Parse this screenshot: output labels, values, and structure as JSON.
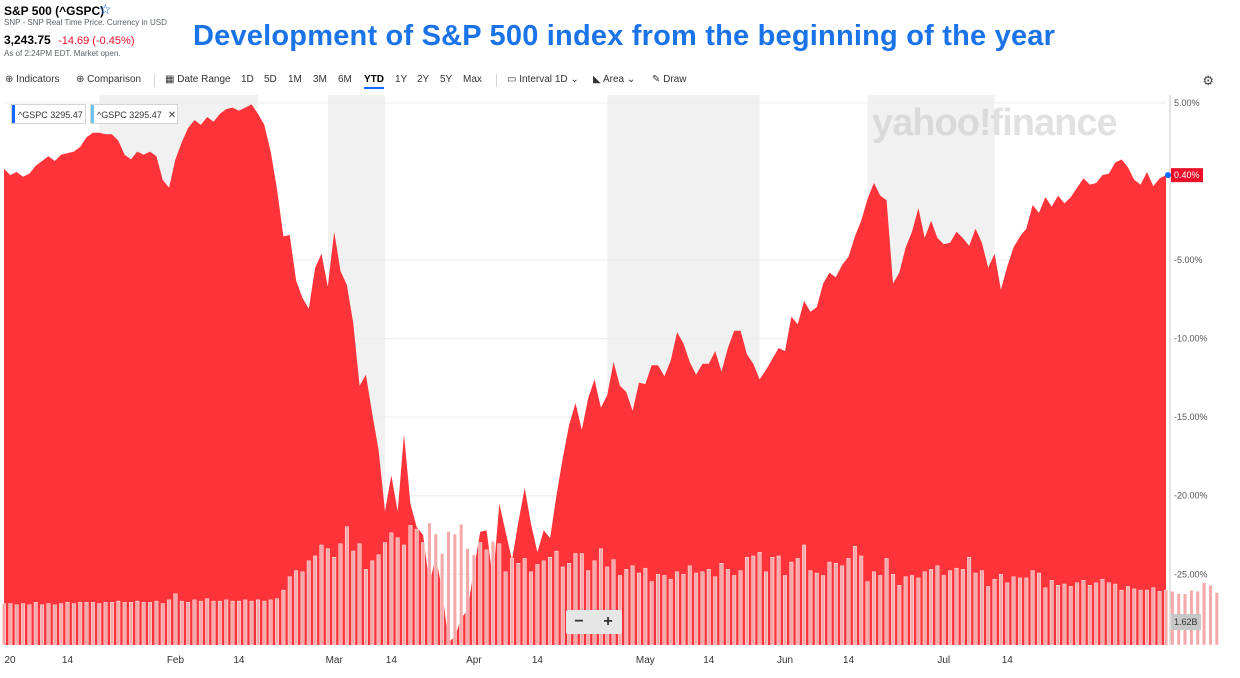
{
  "header": {
    "ticker_name": "S&P 500 (^GSPC)",
    "source_line": "SNP - SNP Real Time Price. Currency in USD",
    "price": "3,243.75",
    "change": "-14.69 (-0.45%)",
    "time_line": "As of 2:24PM EDT. Market open."
  },
  "overlay_title": "Development of S&P 500 index from the beginning of the year",
  "toolbar": {
    "indicators": "Indicators",
    "comparison": "Comparison",
    "date_range": "Date Range",
    "ranges": [
      "1D",
      "5D",
      "1M",
      "3M",
      "6M",
      "YTD",
      "1Y",
      "2Y",
      "5Y",
      "Max"
    ],
    "active_range": "YTD",
    "interval_label": "Interval",
    "interval_value": "1D",
    "chart_type": "Area",
    "draw": "Draw"
  },
  "legend_chips": [
    "^GSPC 3295.47",
    "^GSPC 3295.47"
  ],
  "watermark": "yahoo!finance",
  "current_value_tag": "0.40%",
  "volume_tag": "1.62B",
  "colors": {
    "area": "#ff333a",
    "volume_bar": "#f6a9ab",
    "shade": "#f1f1f1",
    "title": "#1a73e8",
    "accent": "#0f69ff",
    "negative": "#eb0f29"
  },
  "chart_data": {
    "type": "area",
    "ylabel": "",
    "y_unit": "%",
    "ylim": [
      -29.5,
      5.5
    ],
    "yticks": [
      5,
      -5,
      -10,
      -15,
      -20,
      -25
    ],
    "ytick_labels": [
      "5.00%",
      "-5.00%",
      "-10.00%",
      "-15.00%",
      "-20.00%",
      "-25.00%"
    ],
    "xtick_labels": [
      "20",
      "14",
      "Feb",
      "14",
      "Mar",
      "14",
      "Apr",
      "14",
      "May",
      "14",
      "Jun",
      "14",
      "Jul",
      "14"
    ],
    "xtick_index": [
      0,
      10,
      27,
      37,
      52,
      61,
      74,
      84,
      101,
      111,
      123,
      133,
      148,
      158
    ],
    "shaded_months": [
      [
        15,
        40
      ],
      [
        51,
        60
      ],
      [
        95,
        119
      ],
      [
        136,
        156
      ]
    ],
    "series": [
      {
        "values": [
          0.8,
          0.4,
          0.6,
          0.3,
          0.5,
          1.0,
          1.3,
          1.6,
          1.3,
          1.7,
          1.8,
          1.9,
          2.2,
          2.8,
          3.1,
          3.1,
          3.0,
          3.0,
          2.6,
          1.7,
          1.4,
          1.9,
          1.7,
          1.9,
          1.6,
          0.1,
          -0.4,
          1.4,
          2.5,
          3.4,
          3.9,
          3.6,
          4.1,
          3.8,
          4.3,
          4.6,
          4.7,
          4.5,
          4.7,
          4.9,
          4.3,
          3.6,
          1.9,
          -0.5,
          -3.5,
          -3.4,
          -6.3,
          -7.4,
          -8.1,
          -5.5,
          -4.6,
          -6.7,
          -3.2,
          -5.7,
          -6.6,
          -9.0,
          -13.0,
          -12.3,
          -14.8,
          -17.1,
          -21.0,
          -18.7,
          -21.0,
          -16.1,
          -20.5,
          -22.0,
          -22.5,
          -25.6,
          -23.9,
          -26.0,
          -29.3,
          -29.0,
          -27.8,
          -27.3,
          -24.7,
          -22.3,
          -22.2,
          -25.4,
          -20.5,
          -22.3,
          -24.1,
          -21.7,
          -19.5,
          -21.8,
          -23.6,
          -22.2,
          -22.7,
          -20.0,
          -17.6,
          -15.5,
          -14.1,
          -15.8,
          -13.8,
          -12.6,
          -14.4,
          -13.6,
          -11.5,
          -13.0,
          -13.4,
          -14.6,
          -12.8,
          -12.9,
          -11.7,
          -11.7,
          -12.4,
          -11.4,
          -9.6,
          -10.3,
          -11.5,
          -12.3,
          -11.6,
          -11.6,
          -10.8,
          -12.1,
          -10.6,
          -9.5,
          -9.5,
          -11.0,
          -11.6,
          -12.6,
          -12.0,
          -11.3,
          -10.6,
          -10.8,
          -8.6,
          -9.1,
          -7.6,
          -8.3,
          -8.0,
          -6.5,
          -5.8,
          -6.1,
          -5.3,
          -4.8,
          -3.5,
          -2.5,
          -1.1,
          -0.1,
          -0.9,
          -1.2,
          -6.5,
          -5.8,
          -4.2,
          -3.2,
          -1.7,
          -3.6,
          -2.5,
          -3.6,
          -4.0,
          -3.9,
          -3.2,
          -3.6,
          -4.1,
          -3.0,
          -3.9,
          -5.5,
          -4.6,
          -6.9,
          -5.4,
          -4.2,
          -3.5,
          -3.0,
          -1.5,
          -2.0,
          -1.0,
          -1.6,
          -0.9,
          -1.4,
          -1.0,
          -0.4,
          0.2,
          -0.2,
          -0.1,
          0.4,
          0.5,
          1.2,
          1.4,
          0.9,
          0.1,
          -0.2,
          0.6,
          -0.3,
          0.2,
          0.4
        ]
      }
    ],
    "volume_bars": [
      0.34,
      0.34,
      0.33,
      0.34,
      0.33,
      0.35,
      0.33,
      0.34,
      0.33,
      0.34,
      0.35,
      0.34,
      0.35,
      0.35,
      0.35,
      0.34,
      0.35,
      0.35,
      0.36,
      0.35,
      0.35,
      0.36,
      0.35,
      0.35,
      0.36,
      0.34,
      0.37,
      0.42,
      0.36,
      0.35,
      0.37,
      0.36,
      0.38,
      0.36,
      0.36,
      0.37,
      0.36,
      0.36,
      0.37,
      0.36,
      0.37,
      0.36,
      0.37,
      0.38,
      0.45,
      0.56,
      0.61,
      0.6,
      0.69,
      0.73,
      0.82,
      0.79,
      0.72,
      0.83,
      0.97,
      0.77,
      0.83,
      0.62,
      0.69,
      0.74,
      0.84,
      0.92,
      0.88,
      0.82,
      0.98,
      0.95,
      0.84,
      1.0,
      0.91,
      0.75,
      0.93,
      0.91,
      0.99,
      0.79,
      0.74,
      0.84,
      0.78,
      0.85,
      0.83,
      0.6,
      0.71,
      0.67,
      0.71,
      0.6,
      0.66,
      0.69,
      0.72,
      0.77,
      0.64,
      0.67,
      0.75,
      0.75,
      0.61,
      0.69,
      0.79,
      0.64,
      0.7,
      0.57,
      0.62,
      0.65,
      0.59,
      0.63,
      0.52,
      0.58,
      0.57,
      0.54,
      0.6,
      0.58,
      0.65,
      0.59,
      0.6,
      0.62,
      0.56,
      0.67,
      0.62,
      0.57,
      0.61,
      0.72,
      0.73,
      0.76,
      0.6,
      0.72,
      0.73,
      0.57,
      0.68,
      0.71,
      0.82,
      0.61,
      0.59,
      0.57,
      0.68,
      0.67,
      0.65,
      0.71,
      0.81,
      0.73,
      0.52,
      0.6,
      0.57,
      0.71,
      0.58,
      0.49,
      0.56,
      0.57,
      0.55,
      0.6,
      0.62,
      0.65,
      0.57,
      0.61,
      0.63,
      0.62,
      0.72,
      0.59,
      0.61,
      0.48,
      0.54,
      0.58,
      0.51,
      0.56,
      0.55,
      0.55,
      0.61,
      0.59,
      0.47,
      0.53,
      0.49,
      0.5,
      0.48,
      0.51,
      0.53,
      0.49,
      0.51,
      0.54,
      0.51,
      0.5,
      0.45,
      0.48,
      0.46,
      0.45,
      0.45,
      0.47,
      0.44,
      0.45,
      0.44,
      0.42,
      0.42,
      0.45,
      0.44,
      0.51,
      0.49,
      0.43
    ]
  }
}
